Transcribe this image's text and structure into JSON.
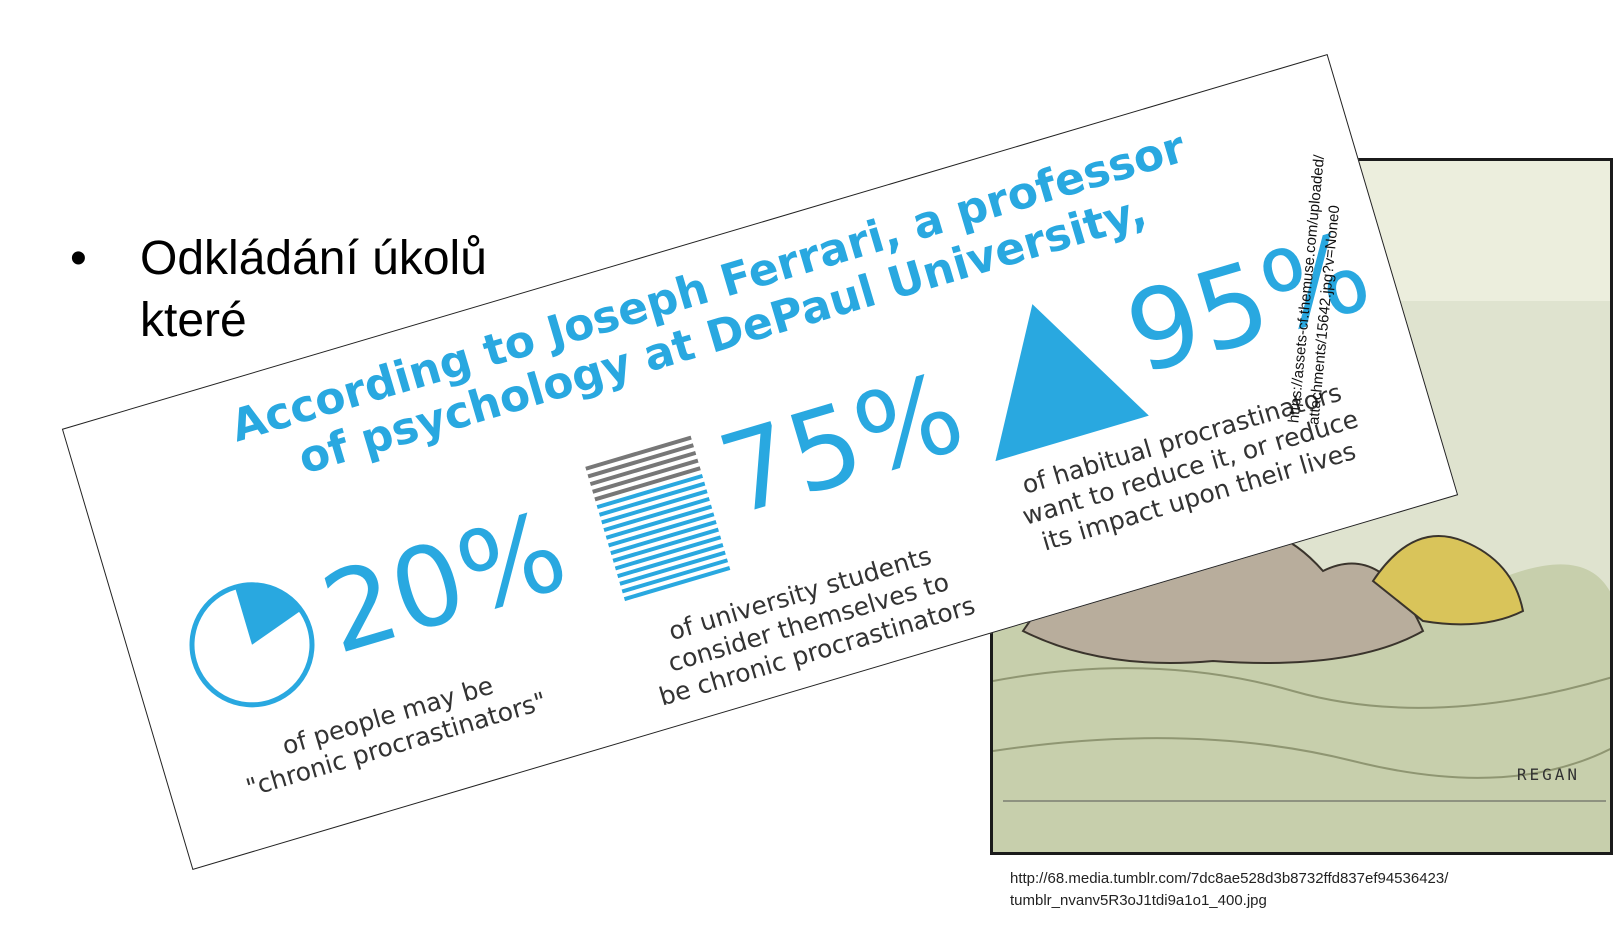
{
  "bullet": {
    "dot": "•",
    "line1": "Odkládání úkolů",
    "line2": "které"
  },
  "cartoon": {
    "signature": "REGAN",
    "caption_line1": "http://68.media.tumblr.com/7dc8ae528d3b8732ffd837ef94536423/",
    "caption_line2": "tumblr_nvanv5R3oJ1tdi9a1o1_400.jpg"
  },
  "infographic": {
    "heading_line1": "According to Joseph Ferrari, a professor",
    "heading_line2": "of psychology at DePaul University,",
    "source_line1": "https://assets-cf.themuse.com/uploaded/",
    "source_line2": "attachments/15642.jpg?v=None0",
    "accent_color": "#29a8e0",
    "stats": [
      {
        "value": "20%",
        "icon": "pie-chart-icon",
        "desc_line1": "of people may be",
        "desc_line2": "\"chronic procrastinators\""
      },
      {
        "value": "75%",
        "icon": "stacked-bars-icon",
        "desc_line1": "of university students",
        "desc_line2": "consider themselves to",
        "desc_line3": "be chronic procrastinators"
      },
      {
        "value": "95%",
        "icon": "triangle-icon",
        "desc_line1": "of habitual procrastinators",
        "desc_line2": "want to reduce it, or reduce",
        "desc_line3": "its impact upon their lives"
      }
    ]
  }
}
